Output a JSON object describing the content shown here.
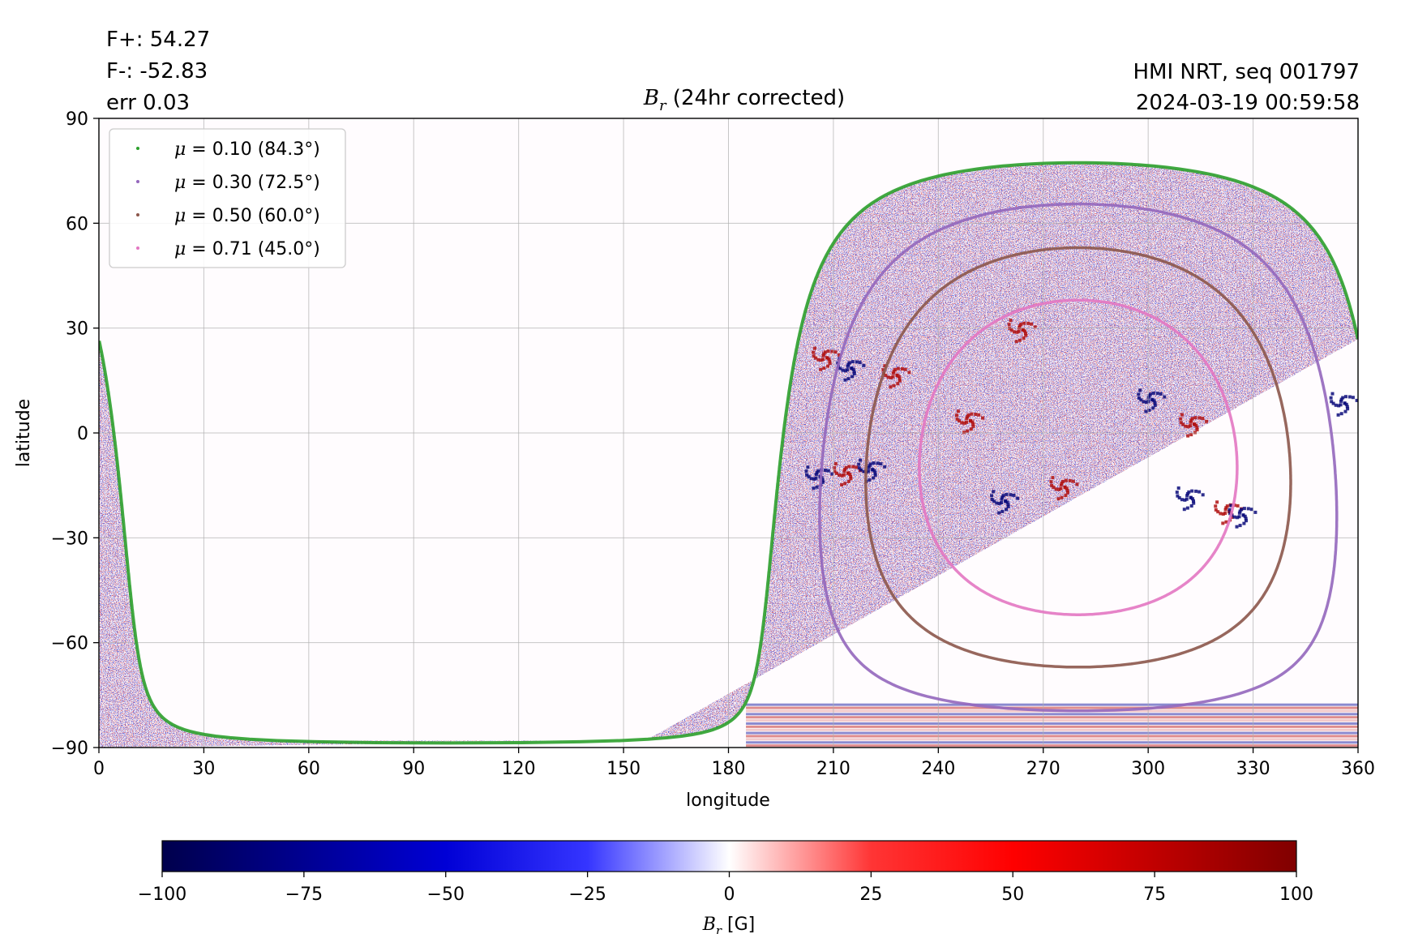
{
  "header": {
    "flux_pos": "F+: 54.27",
    "flux_neg": "F-: -52.83",
    "err": "err 0.03",
    "title_symbol": "B",
    "title_sub": "r",
    "title_rest": " (24hr corrected)",
    "source": "HMI NRT, seq 001797",
    "timestamp": "2024-03-19 00:59:58"
  },
  "chart_data": {
    "type": "heatmap",
    "xlabel": "longitude",
    "ylabel": "latitude",
    "xlim": [
      0,
      360
    ],
    "ylim": [
      -90,
      90
    ],
    "x_ticks": [
      0,
      30,
      60,
      90,
      120,
      150,
      180,
      210,
      240,
      270,
      300,
      330,
      360
    ],
    "y_ticks": [
      90,
      60,
      30,
      0,
      -30,
      -60,
      -90
    ],
    "y_tick_labels": [
      "90",
      "60",
      "30",
      "0",
      "−30",
      "−60",
      "−90"
    ],
    "grid": true,
    "legend_position": "top-left",
    "disk_center_lon": 280,
    "disk_center_lat": -7,
    "series": [
      {
        "name": "μ = 0.10 (84.3°)",
        "mu_label": "0.10",
        "angle_label": "(84.3°)",
        "angle_deg": 84.3,
        "color": "#2ca02c"
      },
      {
        "name": "μ = 0.30 (72.5°)",
        "mu_label": "0.30",
        "angle_label": "(72.5°)",
        "angle_deg": 72.5,
        "color": "#9467bd"
      },
      {
        "name": "μ = 0.50 (60.0°)",
        "mu_label": "0.50",
        "angle_label": "(60.0°)",
        "angle_deg": 60.0,
        "color": "#8c564b"
      },
      {
        "name": "μ = 0.71 (45.0°)",
        "mu_label": "0.71",
        "angle_label": "(45.0°)",
        "angle_deg": 45.0,
        "color": "#e377c2"
      }
    ],
    "active_regions": [
      {
        "lon": 214,
        "lat": 19,
        "polarity": "negative"
      },
      {
        "lon": 227,
        "lat": 17,
        "polarity": "positive"
      },
      {
        "lon": 207,
        "lat": 22,
        "polarity": "positive"
      },
      {
        "lon": 205,
        "lat": -12,
        "polarity": "negative"
      },
      {
        "lon": 213,
        "lat": -11,
        "polarity": "positive"
      },
      {
        "lon": 220,
        "lat": -10,
        "polarity": "negative"
      },
      {
        "lon": 248,
        "lat": 4,
        "polarity": "positive"
      },
      {
        "lon": 263,
        "lat": 30,
        "polarity": "positive"
      },
      {
        "lon": 300,
        "lat": 10,
        "polarity": "negative"
      },
      {
        "lon": 312,
        "lat": 3,
        "polarity": "positive"
      },
      {
        "lon": 311,
        "lat": -18,
        "polarity": "negative"
      },
      {
        "lon": 322,
        "lat": -22,
        "polarity": "positive"
      },
      {
        "lon": 326,
        "lat": -23,
        "polarity": "negative"
      },
      {
        "lon": 355,
        "lat": 9,
        "polarity": "negative"
      },
      {
        "lon": 258,
        "lat": -19,
        "polarity": "negative"
      },
      {
        "lon": 275,
        "lat": -15,
        "polarity": "positive"
      }
    ],
    "colorbar": {
      "label_symbol": "B",
      "label_sub": "r",
      "label_rest": " [G]",
      "min": -100,
      "max": 100,
      "ticks": [
        -100,
        -75,
        -50,
        -25,
        0,
        25,
        50,
        75,
        100
      ],
      "tick_labels": [
        "−100",
        "−75",
        "−50",
        "−25",
        "0",
        "25",
        "50",
        "75",
        "100"
      ],
      "colormap": "seismic",
      "color_low": "#00004c",
      "color_mid": "#ffffff",
      "color_high": "#800000"
    }
  }
}
